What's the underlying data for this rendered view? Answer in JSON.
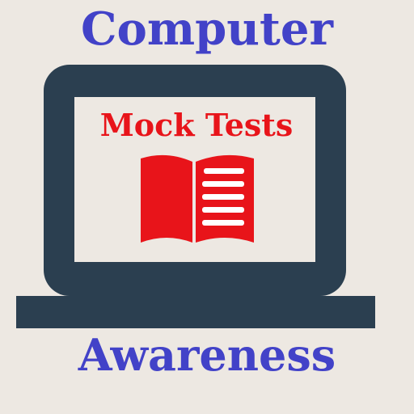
{
  "app": {
    "title_top": "Computer",
    "title_bottom": "Awareness",
    "subtitle": "Mock Tests"
  },
  "icons": {
    "device": "laptop-icon",
    "book": "open-book-icon"
  },
  "colors": {
    "background": "#ede8e2",
    "title": "#4242c8",
    "subtitle": "#e8141a",
    "laptop_frame": "#2b3f50",
    "screen": "#ede8e2",
    "book": "#e8141a"
  }
}
